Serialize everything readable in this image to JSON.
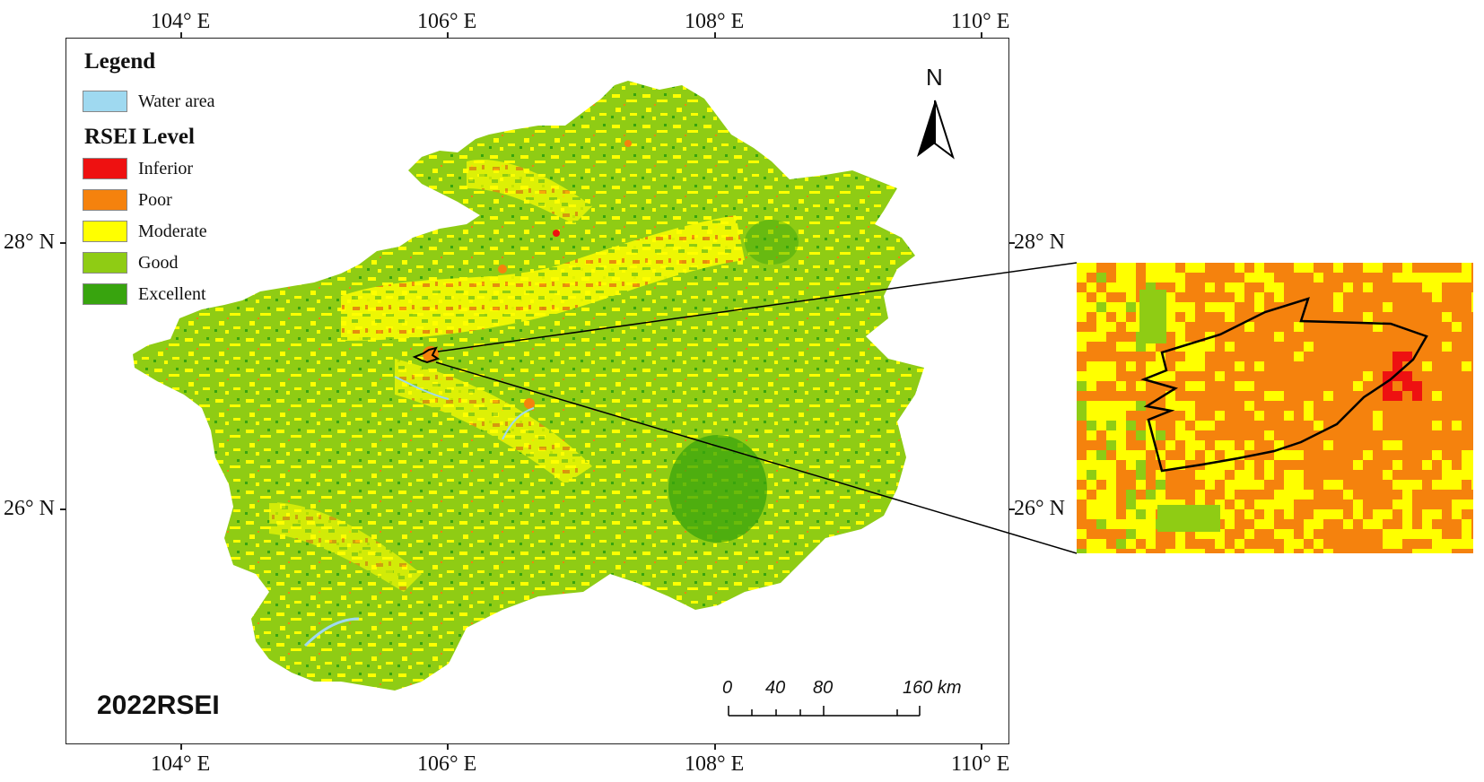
{
  "legend": {
    "title": "Legend",
    "water": {
      "label": "Water area",
      "color": "#9fd9f0"
    },
    "rsei_title": "RSEI Level",
    "levels": [
      {
        "label": "Inferior",
        "color": "#ee1111"
      },
      {
        "label": "Poor",
        "color": "#f5820d"
      },
      {
        "label": "Moderate",
        "color": "#ffff00"
      },
      {
        "label": "Good",
        "color": "#8fcc14"
      },
      {
        "label": "Excellent",
        "color": "#38a40e"
      }
    ]
  },
  "axes": {
    "lon_labels": [
      "104° E",
      "106° E",
      "108° E",
      "110° E"
    ],
    "lat_labels": [
      "28° N",
      "26° N"
    ]
  },
  "north_arrow": {
    "label": "N"
  },
  "scale_bar": {
    "labels": [
      "0",
      "40",
      "80",
      "160 km"
    ]
  },
  "year_label": "2022RSEI"
}
